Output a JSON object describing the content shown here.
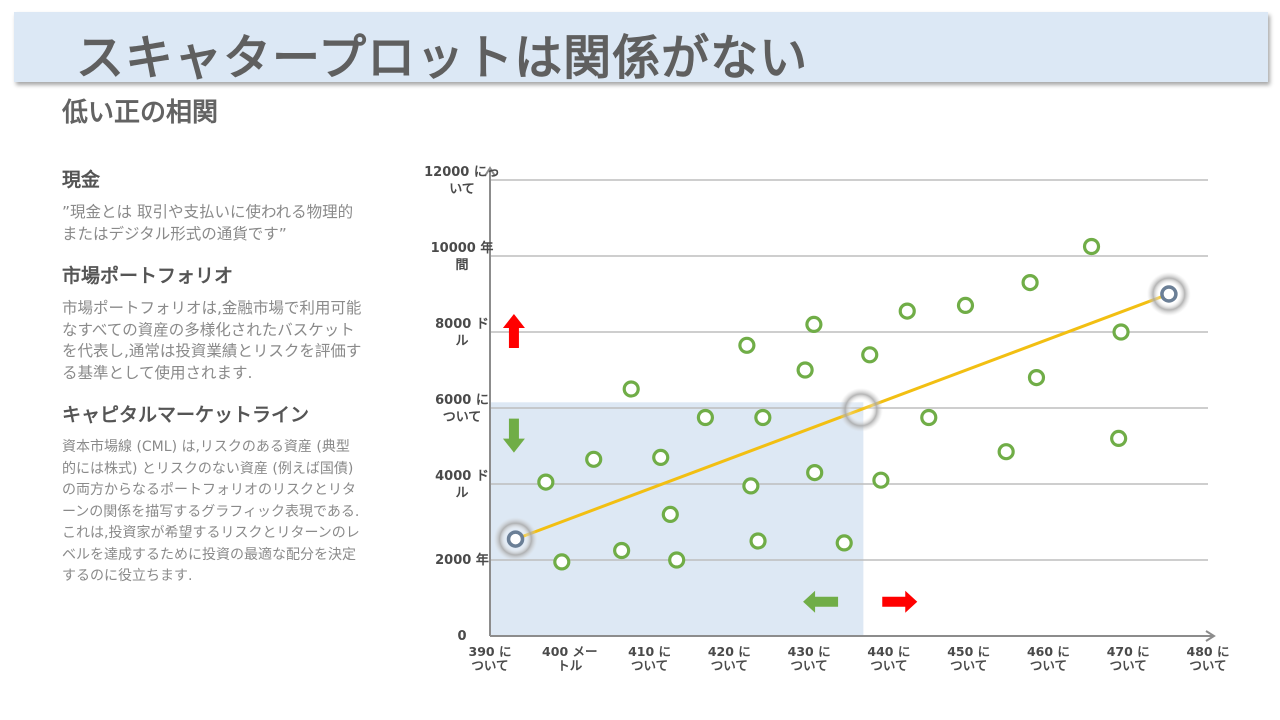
{
  "slide": {
    "title": "スキャタープロットは関係がない",
    "subtitle": "低い正の相関"
  },
  "sidebar": {
    "sections": [
      {
        "heading": "現金",
        "body": "”現金とは 取引や支払いに使われる物理的またはデジタル形式の通貨です”"
      },
      {
        "heading": "市場ポートフォリオ",
        "body": "市場ポートフォリオは,金融市場で利用可能なすべての資産の多様化されたバスケットを代表し,通常は投資業績とリスクを評価する基準として使用されます."
      },
      {
        "heading": "キャピタルマーケットライン",
        "body": "資本市場線 (CML) は,リスクのある資産 (典型的には株式) とリスクのない資産 (例えば国債) の両方からなるポートフォリオのリスクとリターンの関係を描写するグラフィック表現である.これは,投資家が希望するリスクとリターンのレベルを達成するために投資の最適な配分を決定するのに役立ちます."
      }
    ]
  },
  "chart_data": {
    "type": "scatter",
    "title": "",
    "xlabel": "",
    "ylabel": "",
    "xlim": [
      390,
      480
    ],
    "ylim": [
      0,
      12000
    ],
    "grid": true,
    "x_tick_values": [
      390,
      400,
      410,
      420,
      430,
      440,
      450,
      460,
      470,
      480
    ],
    "x_tick_labels": [
      [
        "390 に",
        "ついて"
      ],
      [
        "400 メー",
        "トル"
      ],
      [
        "410 に",
        "ついて"
      ],
      [
        "420 に",
        "ついて"
      ],
      [
        "430 に",
        "ついて"
      ],
      [
        "440 に",
        "ついて"
      ],
      [
        "450 に",
        "ついて"
      ],
      [
        "460 に",
        "ついて"
      ],
      [
        "470 に",
        "ついて"
      ],
      [
        "480 に",
        "ついて"
      ]
    ],
    "y_tick_values": [
      0,
      2000,
      4000,
      6000,
      8000,
      10000,
      12000
    ],
    "y_tick_labels": [
      [
        "0"
      ],
      [
        "2000 年"
      ],
      [
        "4000 ド",
        "ル"
      ],
      [
        "6000 に",
        "ついて"
      ],
      [
        "8000 ド",
        "ル"
      ],
      [
        "10000 年",
        "間"
      ],
      [
        "12000 にっ",
        "いて"
      ]
    ],
    "series": [
      {
        "name": "portfolios",
        "color": "#70ad47",
        "points": [
          [
            397,
            4050
          ],
          [
            399,
            1950
          ],
          [
            403,
            4650
          ],
          [
            406.5,
            2250
          ],
          [
            407.7,
            6500
          ],
          [
            411.4,
            4700
          ],
          [
            412.6,
            3200
          ],
          [
            413.4,
            2000
          ],
          [
            417,
            5750
          ],
          [
            422.2,
            7650
          ],
          [
            422.7,
            3950
          ],
          [
            423.6,
            2500
          ],
          [
            424.2,
            5750
          ],
          [
            429.5,
            7000
          ],
          [
            430.6,
            8200
          ],
          [
            430.7,
            4300
          ],
          [
            434.4,
            2450
          ],
          [
            437.6,
            7400
          ],
          [
            439,
            4100
          ],
          [
            442.3,
            8550
          ],
          [
            445,
            5750
          ],
          [
            449.6,
            8700
          ],
          [
            454.7,
            4850
          ],
          [
            457.7,
            9300
          ],
          [
            458.5,
            6800
          ],
          [
            465.4,
            10250
          ],
          [
            468.8,
            5200
          ],
          [
            469.1,
            8000
          ]
        ]
      }
    ],
    "line": {
      "name": "capital market line",
      "color": "#f2bf12",
      "x": [
        393.2,
        475.1
      ],
      "y": [
        2550,
        9000
      ]
    },
    "highlighted_points": [
      {
        "name": "cash",
        "x": 393.2,
        "y": 2550
      },
      {
        "name": "market-portfolio",
        "x": 436.5,
        "y": 5950
      },
      {
        "name": "top-portfolio",
        "x": 475.1,
        "y": 9000
      }
    ],
    "shaded_region": {
      "x": [
        390,
        436.8
      ],
      "y": [
        0,
        6150
      ],
      "color": "#dde8f4"
    },
    "arrows": [
      {
        "name": "up-arrow",
        "direction": "up",
        "color": "#ff0000",
        "x": 393,
        "y": 8000
      },
      {
        "name": "down-arrow",
        "direction": "down",
        "color": "#70ad47",
        "x": 393,
        "y": 5300
      },
      {
        "name": "left-arrow",
        "direction": "left",
        "color": "#70ad47",
        "x": 431.5,
        "y": 900
      },
      {
        "name": "right-arrow",
        "direction": "right",
        "color": "#ff0000",
        "x": 441.3,
        "y": 900
      }
    ]
  }
}
